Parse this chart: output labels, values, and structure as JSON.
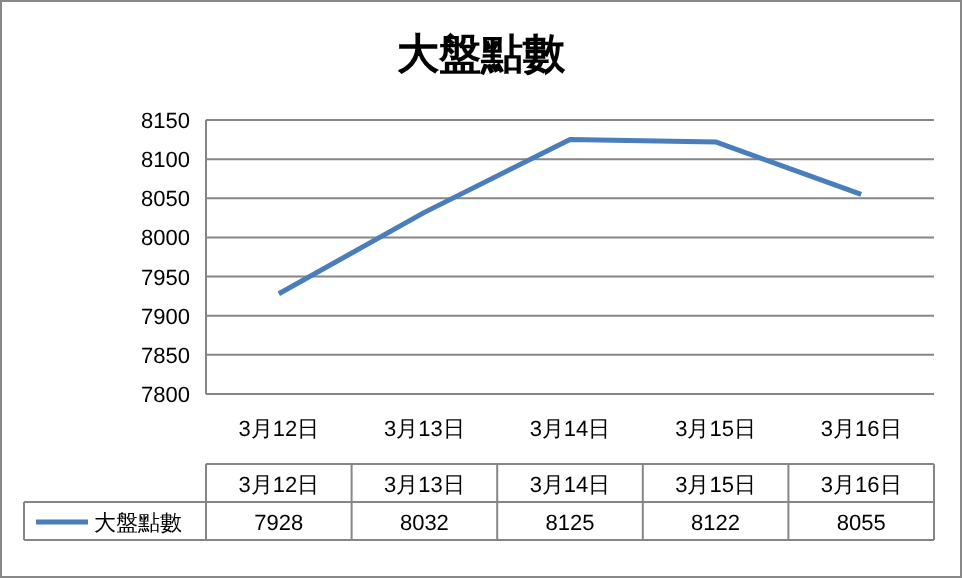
{
  "chart_data": {
    "type": "line",
    "title": "大盤點數",
    "categories": [
      "3月12日",
      "3月13日",
      "3月14日",
      "3月15日",
      "3月16日"
    ],
    "series": [
      {
        "name": "大盤點數",
        "color": "#4a7ebb",
        "values": [
          7928,
          8032,
          8125,
          8122,
          8055
        ]
      }
    ],
    "ylim": [
      7800,
      8150
    ],
    "yticks": [
      7800,
      7850,
      7900,
      7950,
      8000,
      8050,
      8100,
      8150
    ],
    "grid": "y",
    "legend": "bottom",
    "data_labels": true,
    "marker": "none",
    "line_style": "solid"
  }
}
